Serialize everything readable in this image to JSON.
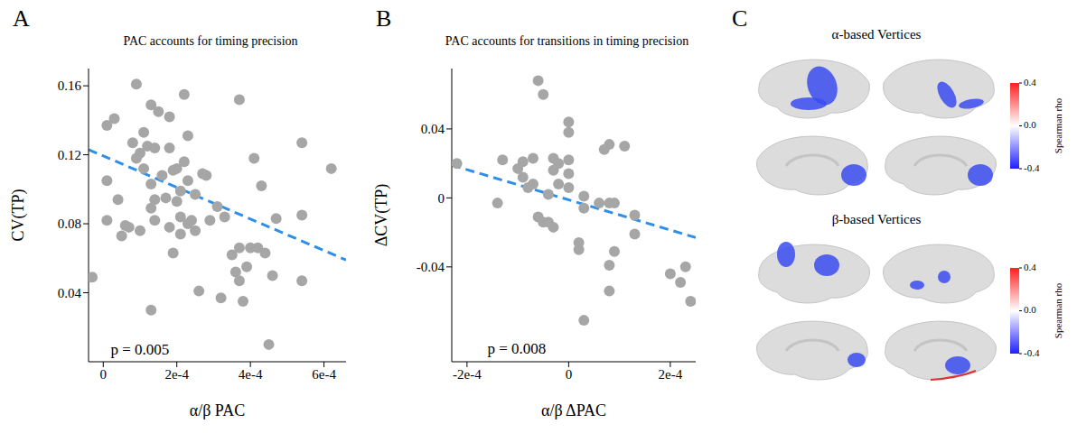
{
  "chart_data": [
    {
      "panel": "A",
      "type": "scatter",
      "title": "PAC accounts for timing precision",
      "x_label": "α/β PAC",
      "y_label": "CV(TP)",
      "xlim": [
        -4e-05,
        0.00066
      ],
      "xticks": [
        0,
        {
          "value": 0.0002,
          "label": "2e-4"
        },
        {
          "value": 0.0004,
          "label": "4e-4"
        },
        {
          "value": 0.0006,
          "label": "6e-4"
        }
      ],
      "ylim": [
        0,
        0.17
      ],
      "yticks": [
        0.04,
        0.08,
        0.12,
        0.16
      ],
      "color": "#a6a6a6",
      "marker": "circle",
      "x": [
        -3e-05,
        1e-05,
        1e-05,
        1e-05,
        3e-05,
        4e-05,
        5e-05,
        6e-05,
        7e-05,
        8e-05,
        9e-05,
        9e-05,
        0.0001,
        0.0001,
        0.00011,
        0.00011,
        0.00012,
        0.00013,
        0.00013,
        0.00013,
        0.00013,
        0.00014,
        0.00014,
        0.00014,
        0.00015,
        0.00016,
        0.00017,
        0.00018,
        0.00018,
        0.00018,
        0.00019,
        0.00019,
        0.0002,
        0.0002,
        0.00021,
        0.00021,
        0.00021,
        0.00022,
        0.00022,
        0.00023,
        0.00023,
        0.00023,
        0.00024,
        0.00025,
        0.00025,
        0.00026,
        0.00027,
        0.00028,
        0.00029,
        0.00031,
        0.00032,
        0.00033,
        0.00035,
        0.00036,
        0.00037,
        0.00037,
        0.00037,
        0.00038,
        0.00039,
        0.0004,
        0.00041,
        0.00042,
        0.00043,
        0.00044,
        0.00045,
        0.00046,
        0.00047,
        0.00054,
        0.00054,
        0.00054,
        0.00062
      ],
      "values": [
        0.049,
        0.082,
        0.105,
        0.137,
        0.141,
        0.094,
        0.073,
        0.079,
        0.078,
        0.127,
        0.161,
        0.118,
        0.121,
        0.076,
        0.133,
        0.112,
        0.125,
        0.149,
        0.103,
        0.089,
        0.03,
        0.124,
        0.082,
        0.094,
        0.145,
        0.108,
        0.095,
        0.142,
        0.124,
        0.078,
        0.063,
        0.111,
        0.093,
        0.112,
        0.099,
        0.084,
        0.074,
        0.116,
        0.155,
        0.105,
        0.08,
        0.131,
        0.082,
        0.097,
        0.076,
        0.041,
        0.109,
        0.108,
        0.082,
        0.09,
        0.037,
        0.084,
        0.062,
        0.052,
        0.152,
        0.066,
        0.047,
        0.035,
        0.055,
        0.066,
        0.118,
        0.066,
        0.102,
        0.063,
        0.01,
        0.05,
        0.083,
        0.127,
        0.047,
        0.085,
        0.112
      ],
      "fit": {
        "x": [
          -4e-05,
          0.00066
        ],
        "values": [
          0.123,
          0.059
        ],
        "color": "#2f8fe8",
        "line_style": "dashed"
      },
      "annotations": [
        {
          "text": "p = 0.005",
          "x": 2e-05,
          "y": 0.006
        }
      ]
    },
    {
      "panel": "B",
      "type": "scatter",
      "title": "PAC accounts for transitions in timing precision",
      "x_label": "α/β ΔPAC",
      "y_label": "ΔCV(TP)",
      "xlim": [
        -0.00023,
        0.00025
      ],
      "xticks": [
        {
          "value": -0.0002,
          "label": "-2e-4"
        },
        0,
        {
          "value": 0.0002,
          "label": "2e-4"
        }
      ],
      "ylim": [
        -0.095,
        0.075
      ],
      "yticks": [
        -0.04,
        0,
        0.04
      ],
      "color": "#a6a6a6",
      "marker": "circle",
      "x": [
        -0.00022,
        -0.00014,
        -0.00013,
        -0.0001,
        -9e-05,
        -9e-05,
        -8e-05,
        -7e-05,
        -7e-05,
        -6e-05,
        -6e-05,
        -5e-05,
        -5e-05,
        -4e-05,
        -4e-05,
        -3e-05,
        -3e-05,
        -3e-05,
        -2e-05,
        -2e-05,
        0,
        0,
        0,
        0,
        0,
        2e-05,
        2e-05,
        3e-05,
        3e-05,
        3e-05,
        6e-05,
        7e-05,
        8e-05,
        8e-05,
        8e-05,
        8e-05,
        9e-05,
        9e-05,
        0.00011,
        0.00013,
        0.00013,
        0.0002,
        0.00022,
        0.00023,
        0.00024
      ],
      "values": [
        0.02,
        -0.003,
        0.022,
        0.017,
        0.012,
        0.021,
        0.006,
        0.008,
        0.023,
        0.068,
        -0.011,
        0.06,
        -0.014,
        0.002,
        -0.014,
        0.016,
        0.023,
        -0.017,
        0.008,
        0.02,
        0.038,
        0.044,
        0.022,
        0.014,
        0.006,
        -0.03,
        -0.026,
        -0.071,
        -0.006,
        0.001,
        -0.003,
        0.028,
        0.031,
        -0.003,
        -0.039,
        -0.054,
        -0.031,
        -0.003,
        0.03,
        -0.021,
        -0.01,
        -0.044,
        -0.049,
        -0.04,
        -0.06
      ],
      "fit": {
        "x": [
          -0.00023,
          0.00025
        ],
        "values": [
          0.019,
          -0.023
        ],
        "color": "#2f8fe8",
        "line_style": "dashed"
      },
      "annotations": [
        {
          "text": "p = 0.008",
          "x": -0.00016,
          "y": -0.088
        }
      ]
    },
    {
      "panel": "C",
      "type": "brain_map",
      "maps": [
        {
          "title": "α-based Vertices"
        },
        {
          "title": "β-based Vertices"
        }
      ],
      "colorbar": {
        "label": "Spearman rho",
        "range": [
          -0.4,
          0.4
        ],
        "ticks": [
          -0.4,
          {
            "value": 0,
            "label": "0.0"
          },
          0.4
        ],
        "colors": [
          "#1f1fff",
          "#ffffff",
          "#ff1f1f"
        ]
      }
    }
  ]
}
